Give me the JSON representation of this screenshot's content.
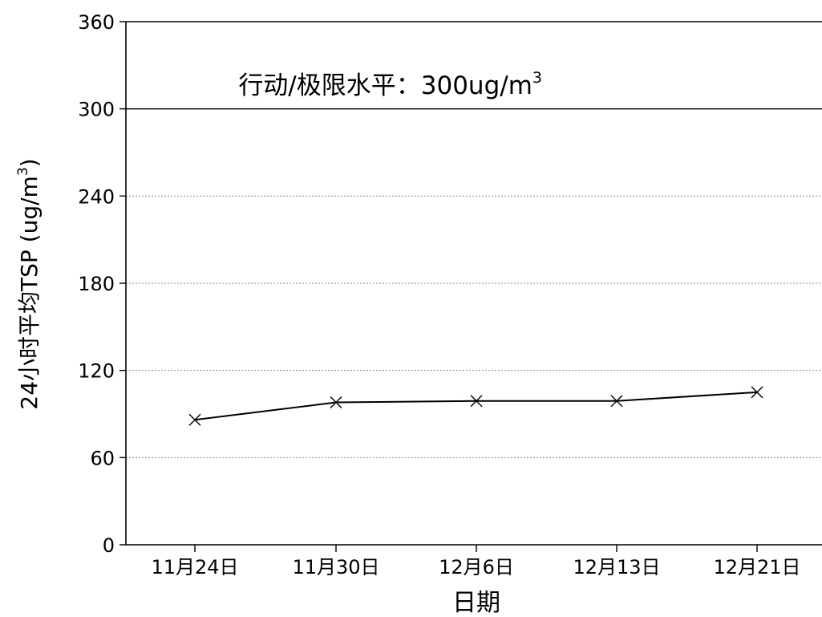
{
  "chart_data": {
    "type": "line",
    "categories": [
      "11月24日",
      "11月30日",
      "12月6日",
      "12月13日",
      "12月21日"
    ],
    "series": [
      {
        "values": [
          86,
          98,
          99,
          99,
          105
        ],
        "marker": "cross"
      }
    ],
    "xlabel": "日期",
    "ylabel_main": "24小时平均TSP (ug/m",
    "ylabel_sup": "3",
    "ylabel_close": ")",
    "ylim": [
      0,
      360
    ],
    "yticks": [
      0,
      60,
      120,
      180,
      240,
      300,
      360
    ],
    "grid": "dotted horizontal",
    "reference_line": {
      "value": 300,
      "style": "solid"
    },
    "annotation": {
      "main": "行动/极限水平：300ug/m",
      "sup": "3"
    }
  },
  "colors": {
    "line": "#000000",
    "grid": "#888888",
    "background": "#ffffff"
  }
}
